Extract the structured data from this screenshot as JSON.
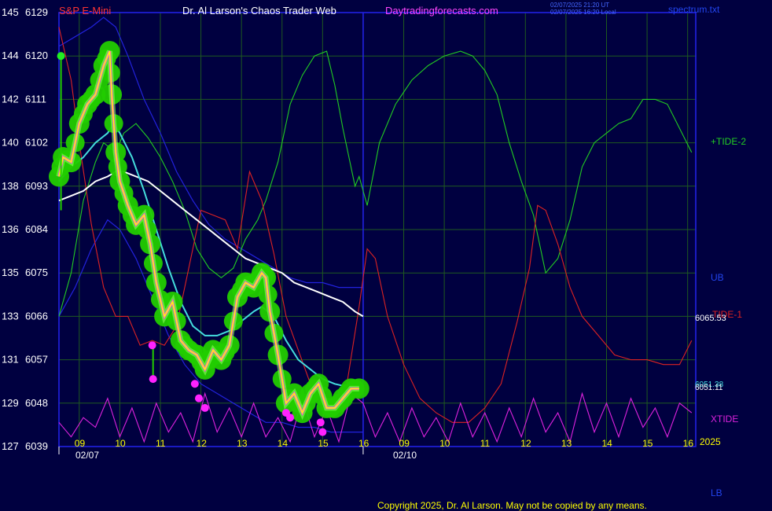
{
  "header": {
    "instrument": "S&P E-Mini",
    "title": "Dr. Al Larson's Chaos Trader Web",
    "site": "Daytradingforecasts.com",
    "timestamp_line1": "02/07/2025 21:20 UT",
    "timestamp_line2": "02/07/2025 16:20 Local",
    "filename": "spectrum.txt"
  },
  "footer": {
    "copyright": "Copyright 2025, Dr. Al Larson. May not be copied by any means."
  },
  "colors": {
    "background": "#000040",
    "grid": "#1f5a1f",
    "frame": "#2222ee",
    "axis_text": "#ffffff",
    "instrument": "#ff3333",
    "title": "#ffffff",
    "site": "#ff44ff",
    "price": "#ffff00",
    "price_spikes": "#ff33ff",
    "halo": "#22cc00",
    "ma_fast": "#44dddd",
    "ma_slow": "#ffffff",
    "tide2": "#22cc22",
    "tide1": "#dd2222",
    "xtide": "#dd22dd",
    "bands": "#2222dd",
    "markers": "#ff22ff"
  },
  "chart_data": {
    "type": "line",
    "x_unit": "hour of day (02/07 session then 02/10 projection)",
    "y_left_outer_ticks": [
      "145",
      "144",
      "142",
      "140",
      "138",
      "136",
      "135",
      "133",
      "131",
      "129",
      "127"
    ],
    "y_left_inner_ticks": [
      "6129",
      "6120",
      "6111",
      "6102",
      "6093",
      "6084",
      "6075",
      "6066",
      "6057",
      "6048",
      "6039"
    ],
    "ylim": [
      6039,
      6129
    ],
    "x_tick_labels": [
      "09",
      "10",
      "11",
      "12",
      "13",
      "14",
      "15",
      "16",
      "09",
      "10",
      "11",
      "12",
      "13",
      "14",
      "15",
      "16"
    ],
    "date_labels": [
      "02/07",
      "02/10"
    ],
    "year_label": "2025",
    "right_labels": {
      "tide2": "+TIDE-2",
      "ub": "UB",
      "tide1": "TIDE-1",
      "tide1_value": "6065.53",
      "ma_value_1": "6051.38",
      "ma_value_2": "6051.11",
      "xtide": "XTIDE",
      "lb": "LB"
    },
    "series": [
      {
        "name": "price",
        "x": [
          8.5,
          8.6,
          8.8,
          9.0,
          9.2,
          9.4,
          9.6,
          9.75,
          9.8,
          9.9,
          10.0,
          10.2,
          10.4,
          10.6,
          10.75,
          10.9,
          11.1,
          11.3,
          11.5,
          11.7,
          11.9,
          12.1,
          12.3,
          12.5,
          12.7,
          12.9,
          13.1,
          13.3,
          13.5,
          13.6,
          13.7,
          13.9,
          14.1,
          14.3,
          14.5,
          14.7,
          14.9,
          15.1,
          15.3,
          15.5,
          15.7,
          15.9
        ],
        "values": [
          6095,
          6099,
          6098,
          6106,
          6110,
          6112,
          6118,
          6121,
          6112,
          6100,
          6094,
          6089,
          6085,
          6087,
          6081,
          6073,
          6066,
          6069,
          6061,
          6059,
          6058,
          6055,
          6059,
          6057,
          6060,
          6070,
          6073,
          6072,
          6075,
          6074,
          6067,
          6058,
          6048,
          6050,
          6046,
          6050,
          6052,
          6047,
          6047,
          6049,
          6051,
          6051
        ]
      },
      {
        "name": "fast-ma",
        "x": [
          8.5,
          8.8,
          9.1,
          9.4,
          9.7,
          9.85,
          10.0,
          10.3,
          10.6,
          10.9,
          11.2,
          11.5,
          11.8,
          12.1,
          12.4,
          12.7,
          13.0,
          13.3,
          13.5,
          13.8,
          14.1,
          14.4,
          14.7,
          15.0,
          15.3,
          15.6,
          15.9
        ],
        "values": [
          6094,
          6097,
          6099,
          6102,
          6104,
          6106,
          6104,
          6099,
          6092,
          6084,
          6076,
          6069,
          6064,
          6062,
          6062,
          6063,
          6065,
          6067,
          6068,
          6066,
          6061,
          6057,
          6055,
          6053,
          6052,
          6051.4,
          6051.1
        ]
      },
      {
        "name": "slow-ma",
        "x": [
          8.5,
          8.8,
          9.1,
          9.4,
          9.7,
          9.9,
          10.1,
          10.4,
          10.7,
          11.0,
          11.3,
          11.6,
          11.9,
          12.2,
          12.5,
          12.8,
          13.1,
          13.4,
          13.7,
          14.0,
          14.3,
          14.6,
          14.9,
          15.2,
          15.5,
          15.8,
          16.0
        ],
        "values": [
          6090,
          6091,
          6092,
          6094,
          6095,
          6096,
          6096,
          6095,
          6094,
          6092,
          6090,
          6088,
          6086,
          6084,
          6082,
          6080,
          6078,
          6077,
          6076,
          6075,
          6073,
          6072,
          6071,
          6070,
          6069,
          6067,
          6066
        ]
      },
      {
        "name": "upper-band",
        "x": [
          8.5,
          8.9,
          9.3,
          9.6,
          9.9,
          10.2,
          10.6,
          11.0,
          11.4,
          11.8,
          12.2,
          12.6,
          13.0,
          13.4,
          13.8,
          14.2,
          14.6,
          15.0,
          15.4,
          15.8,
          16.0
        ],
        "values": [
          6122,
          6124,
          6126,
          6128,
          6126,
          6120,
          6111,
          6104,
          6096,
          6090,
          6085,
          6082,
          6080,
          6078,
          6076,
          6074,
          6073,
          6073,
          6072,
          6072,
          6072
        ]
      },
      {
        "name": "lower-band",
        "x": [
          8.5,
          8.9,
          9.3,
          9.7,
          10.0,
          10.4,
          10.8,
          11.2,
          11.6,
          12.0,
          12.4,
          12.8,
          13.2,
          13.6,
          14.0,
          14.4,
          14.8,
          15.2,
          15.6,
          16.0
        ],
        "values": [
          6066,
          6072,
          6080,
          6086,
          6084,
          6078,
          6070,
          6062,
          6056,
          6052,
          6050,
          6048,
          6046,
          6044,
          6044,
          6043,
          6043,
          6042,
          6042,
          6042
        ]
      },
      {
        "name": "+TIDE-2",
        "x": [
          8.5,
          8.8,
          9.1,
          9.4,
          9.6,
          9.9,
          10.1,
          10.4,
          10.7,
          11.0,
          11.3,
          11.6,
          11.9,
          12.2,
          12.5,
          12.8,
          13.1,
          13.4,
          13.6,
          13.9,
          14.2,
          14.5,
          14.8,
          15.1,
          15.3,
          15.5,
          15.8,
          15.9,
          16.1,
          16.4,
          16.8,
          17.2,
          17.6,
          18.0,
          18.4,
          18.7,
          19.0,
          19.3,
          19.6,
          19.9,
          20.2,
          20.5,
          20.8,
          21.1,
          21.4,
          21.7,
          22.0,
          22.3,
          22.6,
          22.9,
          23.2,
          23.5,
          23.8,
          24.1
        ],
        "values": [
          6066,
          6075,
          6090,
          6098,
          6102,
          6100,
          6104,
          6106,
          6103,
          6099,
          6094,
          6088,
          6080,
          6076,
          6074,
          6076,
          6082,
          6086,
          6090,
          6098,
          6110,
          6116,
          6120,
          6121,
          6114,
          6105,
          6093,
          6095,
          6089,
          6102,
          6110,
          6115,
          6118,
          6120,
          6121,
          6120,
          6117,
          6112,
          6102,
          6094,
          6087,
          6075,
          6078,
          6086,
          6097,
          6102,
          6104,
          6106,
          6107,
          6111,
          6111,
          6110,
          6105,
          6100
        ]
      },
      {
        "name": "TIDE-1",
        "x": [
          8.5,
          8.8,
          9.0,
          9.3,
          9.6,
          9.9,
          10.2,
          10.5,
          10.8,
          11.1,
          11.4,
          11.7,
          12.0,
          12.3,
          12.6,
          12.9,
          13.2,
          13.5,
          13.8,
          14.1,
          14.4,
          14.7,
          15.0,
          15.3,
          15.6,
          15.9,
          16.1,
          16.3,
          16.6,
          17.0,
          17.4,
          17.8,
          18.2,
          18.6,
          19.0,
          19.4,
          19.8,
          20.1,
          20.3,
          20.5,
          20.8,
          21.1,
          21.4,
          21.8,
          22.2,
          22.6,
          23.0,
          23.4,
          23.8,
          24.1
        ],
        "values": [
          6126,
          6115,
          6102,
          6085,
          6072,
          6066,
          6066,
          6060,
          6061,
          6060,
          6064,
          6076,
          6088,
          6087,
          6086,
          6080,
          6096,
          6090,
          6079,
          6066,
          6059,
          6052,
          6047,
          6046,
          6052,
          6068,
          6080,
          6078,
          6066,
          6056,
          6049,
          6046,
          6044,
          6044,
          6047,
          6052,
          6065,
          6076,
          6089,
          6088,
          6081,
          6072,
          6066,
          6062,
          6058,
          6057,
          6057,
          6056,
          6056,
          6061
        ]
      },
      {
        "name": "XTIDE",
        "x": [
          8.5,
          8.8,
          9.1,
          9.4,
          9.7,
          10.0,
          10.3,
          10.6,
          10.9,
          11.2,
          11.5,
          11.8,
          12.1,
          12.4,
          12.7,
          13.0,
          13.3,
          13.6,
          13.9,
          14.2,
          14.5,
          14.8,
          15.1,
          15.4,
          15.7,
          16.0,
          16.3,
          16.6,
          16.9,
          17.2,
          17.5,
          17.8,
          18.1,
          18.4,
          18.7,
          19.0,
          19.3,
          19.6,
          19.9,
          20.2,
          20.5,
          20.8,
          21.1,
          21.4,
          21.7,
          22.0,
          22.3,
          22.6,
          22.9,
          23.2,
          23.5,
          23.8,
          24.1
        ],
        "values": [
          6044,
          6041,
          6045,
          6043,
          6049,
          6041,
          6047,
          6040,
          6048,
          6042,
          6046,
          6040,
          6050,
          6042,
          6047,
          6041,
          6048,
          6041,
          6045,
          6040,
          6049,
          6041,
          6047,
          6040,
          6050,
          6048,
          6041,
          6046,
          6040,
          6047,
          6041,
          6045,
          6040,
          6048,
          6041,
          6046,
          6040,
          6047,
          6041,
          6049,
          6042,
          6046,
          6040,
          6050,
          6042,
          6048,
          6041,
          6049,
          6043,
          6047,
          6041,
          6048,
          6046
        ]
      }
    ],
    "markers": [
      {
        "x": 8.55,
        "y": 6120,
        "color": "green"
      },
      {
        "x": 10.8,
        "y": 6060,
        "color": "magenta"
      },
      {
        "x": 10.82,
        "y": 6053,
        "color": "magenta"
      },
      {
        "x": 11.85,
        "y": 6052,
        "color": "magenta"
      },
      {
        "x": 11.95,
        "y": 6049,
        "color": "magenta"
      },
      {
        "x": 12.1,
        "y": 6047,
        "color": "magenta"
      },
      {
        "x": 14.1,
        "y": 6046,
        "color": "magenta"
      },
      {
        "x": 14.2,
        "y": 6045,
        "color": "magenta"
      },
      {
        "x": 14.95,
        "y": 6044,
        "color": "magenta"
      },
      {
        "x": 15.0,
        "y": 6042,
        "color": "magenta"
      }
    ]
  }
}
